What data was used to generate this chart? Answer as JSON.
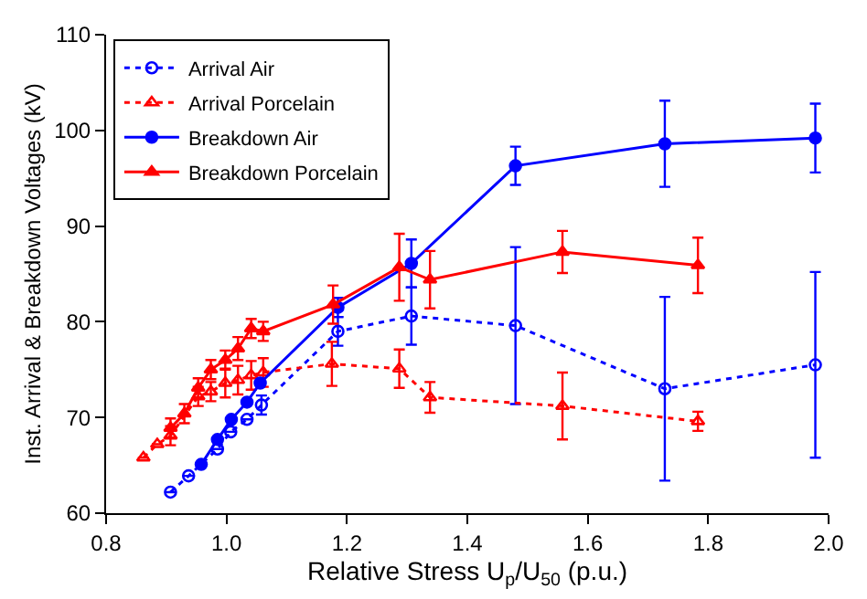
{
  "chart_data": {
    "type": "line",
    "xlabel": "Relative Stress U$_{p}$/U$_{50}$ (p.u.)",
    "ylabel": "Inst. Arrival & Breakdown Voltages (kV)",
    "xlim": [
      0.8,
      2.0
    ],
    "xticks": [
      0.8,
      {
        "value": 1.0,
        "label": "1.0"
      },
      1.2,
      1.4,
      1.6,
      1.8,
      {
        "value": 2.0,
        "label": "2.0"
      }
    ],
    "ylim": [
      60,
      110
    ],
    "yticks": [
      60,
      70,
      80,
      90,
      100,
      110
    ],
    "legend": "top left",
    "series": [
      {
        "name": "Arrival Air",
        "color": "#0000ff",
        "line_style": "dotted",
        "marker": "circle",
        "x": [
          0.907,
          0.937,
          0.985,
          1.007,
          1.034,
          1.058,
          1.185,
          1.307,
          1.48,
          1.728,
          1.978
        ],
        "values": [
          62.2,
          63.9,
          66.7,
          68.5,
          69.8,
          71.3,
          79.0,
          80.6,
          79.6,
          73.0,
          75.5
        ],
        "errors": [
          null,
          null,
          null,
          null,
          null,
          1,
          1.5,
          3,
          8.2,
          9.6,
          9.7
        ]
      },
      {
        "name": "Arrival Porcelain",
        "color": "#ff0000",
        "line_style": "dotted",
        "marker": "triangle",
        "x": [
          0.862,
          0.885,
          0.907,
          0.953,
          0.974,
          0.998,
          1.019,
          1.041,
          1.061,
          1.175,
          1.287,
          1.338,
          1.558,
          1.783
        ],
        "values": [
          65.8,
          67.2,
          68.1,
          72.2,
          72.7,
          73.6,
          73.9,
          74.4,
          74.7,
          75.6,
          75.1,
          72.1,
          71.2,
          69.6
        ],
        "errors": [
          null,
          null,
          1,
          1,
          1,
          1.5,
          1.5,
          1.5,
          1.5,
          2.3,
          2,
          1.6,
          3.5,
          1
        ]
      },
      {
        "name": "Breakdown Air",
        "color": "#0000ff",
        "line_style": "solid",
        "marker": "circle",
        "x": [
          0.958,
          0.985,
          1.008,
          1.034,
          1.056,
          1.185,
          1.307,
          1.48,
          1.728,
          1.978
        ],
        "values": [
          65.1,
          67.7,
          69.8,
          71.6,
          73.6,
          81.5,
          86.1,
          96.3,
          98.6,
          99.2
        ],
        "errors": [
          null,
          null,
          null,
          null,
          null,
          1,
          2.5,
          2,
          4.5,
          3.6
        ]
      },
      {
        "name": "Breakdown Porcelain",
        "color": "#ff0000",
        "line_style": "solid",
        "marker": "triangle",
        "x": [
          0.907,
          0.93,
          0.953,
          0.974,
          0.998,
          1.019,
          1.041,
          1.061,
          1.177,
          1.287,
          1.338,
          1.558,
          1.783
        ],
        "values": [
          68.9,
          70.4,
          73.1,
          75.0,
          76.0,
          77.2,
          79.3,
          79.0,
          81.8,
          85.7,
          84.4,
          87.3,
          85.9
        ],
        "errors": [
          1,
          1,
          1,
          1,
          1,
          1.2,
          1,
          1,
          2,
          3.5,
          3,
          2.2,
          2.9
        ]
      }
    ]
  }
}
